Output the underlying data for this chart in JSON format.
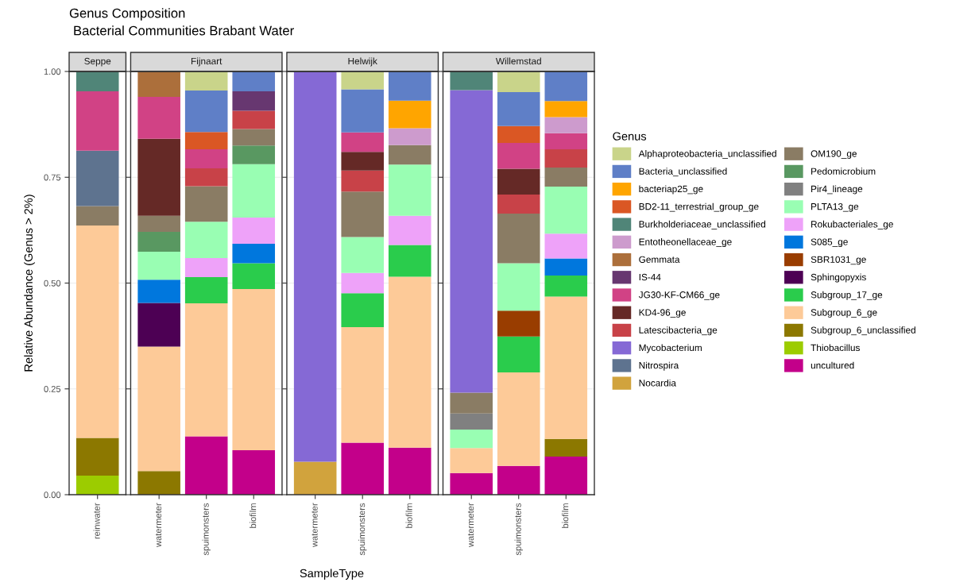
{
  "chart_data": [
    {
      "type": "bar",
      "stacked": true,
      "title": "Seppe",
      "annotations": [
        "Genus Composition",
        "Bacterial Communities Brabant Water"
      ],
      "legend": "right",
      "ylabel": "Relative Abundance (Genus > 2%)",
      "categories": [
        "reinwater"
      ],
      "ylim": [
        0,
        1
      ],
      "yticks": [
        {
          "value": 0,
          "label": "0.00"
        },
        {
          "value": 0.25,
          "label": "0.25"
        },
        {
          "value": 0.5,
          "label": "0.50"
        },
        {
          "value": 0.75,
          "label": "0.75"
        },
        {
          "value": 1,
          "label": "1.00"
        }
      ],
      "grid": "y",
      "series": [
        {
          "name": "Thiobacillus",
          "color": "#9ccc00",
          "values": [
            0.045
          ]
        },
        {
          "name": "Subgroup_6_unclassified",
          "color": "#8c7800",
          "values": [
            0.089
          ]
        },
        {
          "name": "Subgroup_6_ge",
          "color": "#fdca98",
          "values": [
            0.502
          ]
        },
        {
          "name": "OM190_ge",
          "color": "#8a7c64",
          "values": [
            0.046
          ]
        },
        {
          "name": "Nitrospira",
          "color": "#5e738f",
          "values": [
            0.131
          ]
        },
        {
          "name": "JG30-KF-CM66_ge",
          "color": "#d14285",
          "values": [
            0.14
          ]
        },
        {
          "name": "Burkholderiaceae_unclassified",
          "color": "#508578",
          "values": [
            0.047
          ]
        }
      ]
    },
    {
      "type": "bar",
      "stacked": true,
      "title": "Fijnaart",
      "legend": "right",
      "categories": [
        "watermeter",
        "spuimonsters",
        "biofilm"
      ],
      "ylim": [
        0,
        1
      ],
      "yticks": [
        {
          "value": 0,
          "label": null
        },
        {
          "value": 0.25,
          "label": null
        },
        {
          "value": 0.5,
          "label": null
        },
        {
          "value": 0.75,
          "label": null
        },
        {
          "value": 1,
          "label": null
        }
      ],
      "tick_labels": "x",
      "grid": "y",
      "series": [
        {
          "name": "uncultured",
          "color": "#c3008a",
          "values": [
            null,
            0.138,
            0.105
          ]
        },
        {
          "name": "Subgroup_6_unclassified",
          "color": "#8c7800",
          "values": [
            0.056,
            null,
            null
          ]
        },
        {
          "name": "Subgroup_6_ge",
          "color": "#fdca98",
          "values": [
            0.294,
            0.314,
            0.381
          ]
        },
        {
          "name": "Subgroup_17_ge",
          "color": "#2acc4c",
          "values": [
            null,
            0.062,
            0.061
          ]
        },
        {
          "name": "Sphingopyxis",
          "color": "#4d0054",
          "values": [
            0.103,
            null,
            null
          ]
        },
        {
          "name": "S085_ge",
          "color": "#0077dd",
          "values": [
            0.055,
            null,
            0.046
          ]
        },
        {
          "name": "Rokubacteriales_ge",
          "color": "#eea2f9",
          "values": [
            null,
            0.045,
            0.062
          ]
        },
        {
          "name": "PLTA13_ge",
          "color": "#99feb3",
          "values": [
            0.066,
            0.086,
            0.126
          ]
        },
        {
          "name": "Pedomicrobium",
          "color": "#599861",
          "values": [
            0.047,
            null,
            0.044
          ]
        },
        {
          "name": "OM190_ge",
          "color": "#8a7c64",
          "values": [
            0.038,
            0.084,
            0.039
          ]
        },
        {
          "name": "Latescibacteria_ge",
          "color": "#c84248",
          "values": [
            null,
            0.042,
            0.043
          ]
        },
        {
          "name": "KD4-96_ge",
          "color": "#652926",
          "values": [
            0.182,
            null,
            null
          ]
        },
        {
          "name": "JG30-KF-CM66_ge",
          "color": "#d14285",
          "values": [
            0.099,
            0.045,
            null
          ]
        },
        {
          "name": "IS-44",
          "color": "#673770",
          "values": [
            null,
            null,
            0.046
          ]
        },
        {
          "name": "Gemmata",
          "color": "#ac6f3b",
          "values": [
            0.06,
            null,
            null
          ]
        },
        {
          "name": "BD2-11_terrestrial_group_ge",
          "color": "#da5724",
          "values": [
            null,
            0.041,
            null
          ]
        },
        {
          "name": "Bacteria_unclassified",
          "color": "#5f7fc7",
          "values": [
            null,
            0.098,
            0.047
          ]
        },
        {
          "name": "Alphaproteobacteria_unclassified",
          "color": "#c9d48a",
          "values": [
            null,
            0.045,
            null
          ]
        }
      ]
    },
    {
      "type": "bar",
      "stacked": true,
      "title": "Helwijk",
      "xlabel": "SampleType",
      "legend": "right",
      "categories": [
        "watermeter",
        "spuimonsters",
        "biofilm"
      ],
      "ylim": [
        0,
        1
      ],
      "yticks": [
        {
          "value": 0,
          "label": null
        },
        {
          "value": 0.25,
          "label": null
        },
        {
          "value": 0.5,
          "label": null
        },
        {
          "value": 0.75,
          "label": null
        },
        {
          "value": 1,
          "label": null
        }
      ],
      "tick_labels": "x",
      "grid": "y",
      "series": [
        {
          "name": "uncultured",
          "color": "#c3008a",
          "values": [
            null,
            0.123,
            0.111
          ]
        },
        {
          "name": "Subgroup_6_ge",
          "color": "#fdca98",
          "values": [
            null,
            0.273,
            0.404
          ]
        },
        {
          "name": "Subgroup_17_ge",
          "color": "#2acc4c",
          "values": [
            null,
            0.08,
            0.075
          ]
        },
        {
          "name": "Rokubacteriales_ge",
          "color": "#eea2f9",
          "values": [
            null,
            0.048,
            0.069
          ]
        },
        {
          "name": "PLTA13_ge",
          "color": "#99feb3",
          "values": [
            null,
            0.085,
            0.121
          ]
        },
        {
          "name": "OM190_ge",
          "color": "#8a7c64",
          "values": [
            null,
            0.107,
            0.046
          ]
        },
        {
          "name": "Nocardia",
          "color": "#d1a33d",
          "values": [
            0.078,
            null,
            null
          ]
        },
        {
          "name": "Mycobacterium",
          "color": "#8569d5",
          "values": [
            0.922,
            null,
            null
          ]
        },
        {
          "name": "Latescibacteria_ge",
          "color": "#c84248",
          "values": [
            null,
            0.05,
            null
          ]
        },
        {
          "name": "KD4-96_ge",
          "color": "#652926",
          "values": [
            null,
            0.044,
            null
          ]
        },
        {
          "name": "JG30-KF-CM66_ge",
          "color": "#d14285",
          "values": [
            null,
            0.046,
            null
          ]
        },
        {
          "name": "Entotheonellaceae_ge",
          "color": "#cd9bcd",
          "values": [
            null,
            null,
            0.04
          ]
        },
        {
          "name": "bacteriap25_ge",
          "color": "#ffa500",
          "values": [
            null,
            null,
            0.065
          ]
        },
        {
          "name": "Bacteria_unclassified",
          "color": "#5f7fc7",
          "values": [
            null,
            0.102,
            0.069
          ]
        },
        {
          "name": "Alphaproteobacteria_unclassified",
          "color": "#c9d48a",
          "values": [
            null,
            0.042,
            null
          ]
        }
      ]
    },
    {
      "type": "bar",
      "stacked": true,
      "title": "Willemstad",
      "categories": [
        "watermeter",
        "spuimonsters",
        "biofilm"
      ],
      "ylim": [
        0,
        1
      ],
      "yticks": [
        {
          "value": 0,
          "label": null
        },
        {
          "value": 0.25,
          "label": null
        },
        {
          "value": 0.5,
          "label": null
        },
        {
          "value": 0.75,
          "label": null
        },
        {
          "value": 1,
          "label": null
        }
      ],
      "tick_labels": "x",
      "grid": "y",
      "legend": "right",
      "legend_title": "Genus",
      "series": [
        {
          "name": "uncultured",
          "color": "#c3008a",
          "values": [
            0.051,
            0.068,
            0.09
          ]
        },
        {
          "name": "Thiobacillus",
          "color": "#9ccc00",
          "values": [
            null,
            null,
            null
          ]
        },
        {
          "name": "Subgroup_6_unclassified",
          "color": "#8c7800",
          "values": [
            null,
            null,
            0.042
          ]
        },
        {
          "name": "Subgroup_6_ge",
          "color": "#fdca98",
          "values": [
            0.059,
            0.221,
            0.336
          ]
        },
        {
          "name": "Subgroup_17_ge",
          "color": "#2acc4c",
          "values": [
            null,
            0.085,
            0.05
          ]
        },
        {
          "name": "Sphingopyxis",
          "color": "#4d0054",
          "values": [
            null,
            null,
            null
          ]
        },
        {
          "name": "SBR1031_ge",
          "color": "#993d00",
          "values": [
            null,
            0.061,
            null
          ]
        },
        {
          "name": "S085_ge",
          "color": "#0077dd",
          "values": [
            null,
            null,
            0.04
          ]
        },
        {
          "name": "Rokubacteriales_ge",
          "color": "#eea2f9",
          "values": [
            null,
            null,
            0.059
          ]
        },
        {
          "name": "PLTA13_ge",
          "color": "#99feb3",
          "values": [
            0.044,
            0.112,
            0.111
          ]
        },
        {
          "name": "Pir4_lineage",
          "color": "#808080",
          "values": [
            0.038,
            null,
            null
          ]
        },
        {
          "name": "Pedomicrobium",
          "color": "#599861",
          "values": [
            null,
            null,
            null
          ]
        },
        {
          "name": "OM190_ge",
          "color": "#8a7c64",
          "values": [
            0.049,
            0.117,
            0.045
          ]
        },
        {
          "name": "Nocardia",
          "color": "#d1a33d",
          "values": [
            null,
            null,
            null
          ]
        },
        {
          "name": "Nitrospira",
          "color": "#5e738f",
          "values": [
            null,
            null,
            null
          ]
        },
        {
          "name": "Mycobacterium",
          "color": "#8569d5",
          "values": [
            0.715,
            null,
            null
          ]
        },
        {
          "name": "Latescibacteria_ge",
          "color": "#c84248",
          "values": [
            null,
            0.045,
            0.043
          ]
        },
        {
          "name": "KD4-96_ge",
          "color": "#652926",
          "values": [
            null,
            0.061,
            null
          ]
        },
        {
          "name": "JG30-KF-CM66_ge",
          "color": "#d14285",
          "values": [
            null,
            0.061,
            0.038
          ]
        },
        {
          "name": "IS-44",
          "color": "#673770",
          "values": [
            null,
            null,
            null
          ]
        },
        {
          "name": "Gemmata",
          "color": "#ac6f3b",
          "values": [
            null,
            null,
            null
          ]
        },
        {
          "name": "Entotheonellaceae_ge",
          "color": "#cd9bcd",
          "values": [
            null,
            null,
            0.038
          ]
        },
        {
          "name": "Burkholderiaceae_unclassified",
          "color": "#508578",
          "values": [
            0.044,
            null,
            null
          ]
        },
        {
          "name": "BD2-11_terrestrial_group_ge",
          "color": "#da5724",
          "values": [
            null,
            0.04,
            null
          ]
        },
        {
          "name": "bacteriap25_ge",
          "color": "#ffa500",
          "values": [
            null,
            null,
            0.038
          ]
        },
        {
          "name": "Bacteria_unclassified",
          "color": "#5f7fc7",
          "values": [
            null,
            0.08,
            0.07
          ]
        },
        {
          "name": "Alphaproteobacteria_unclassified",
          "color": "#c9d48a",
          "values": [
            null,
            0.049,
            null
          ]
        }
      ]
    }
  ]
}
